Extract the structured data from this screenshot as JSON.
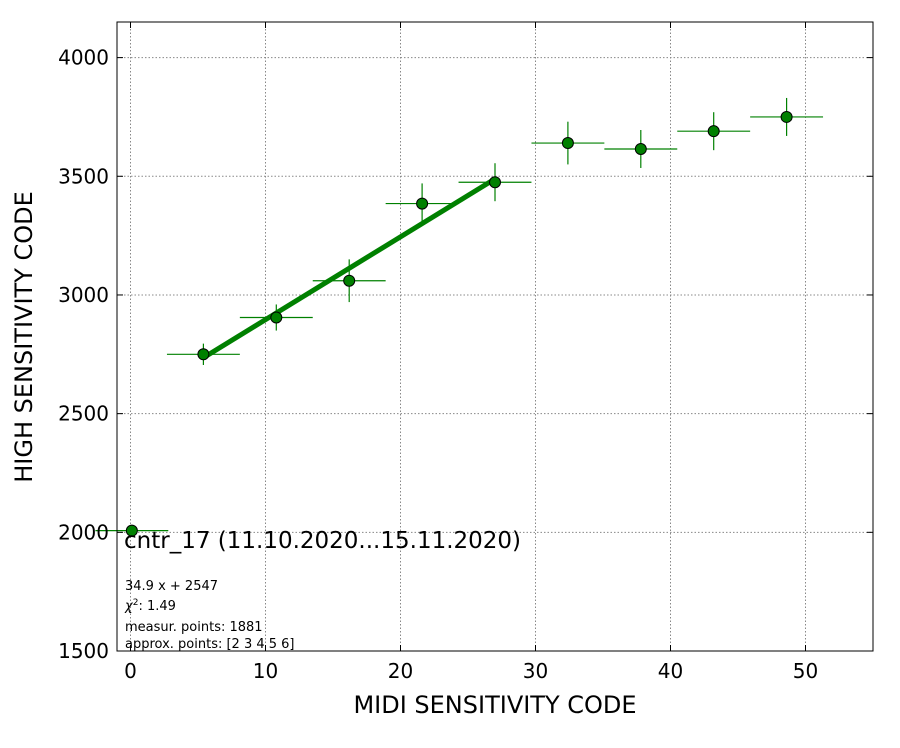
{
  "chart_data": {
    "type": "scatter",
    "title": "",
    "xlabel": "MIDI SENSITIVITY CODE",
    "ylabel": "HIGH SENSITIVITY CODE",
    "xlim": [
      -1,
      55
    ],
    "ylim": [
      1500,
      4150
    ],
    "x_ticks": [
      0,
      10,
      20,
      30,
      40,
      50
    ],
    "y_ticks": [
      1500,
      2000,
      2500,
      3000,
      3500,
      4000
    ],
    "grid": true,
    "colors": {
      "points": "#008000",
      "fit_line": "#008000"
    },
    "points": [
      {
        "x": 0.1,
        "y": 2007,
        "xerr": 2.7,
        "yerr": 0
      },
      {
        "x": 5.4,
        "y": 2750,
        "xerr": 2.7,
        "yerr": 45
      },
      {
        "x": 10.8,
        "y": 2905,
        "xerr": 2.7,
        "yerr": 55
      },
      {
        "x": 16.2,
        "y": 3060,
        "xerr": 2.7,
        "yerr": 90
      },
      {
        "x": 21.6,
        "y": 3385,
        "xerr": 2.7,
        "yerr": 85
      },
      {
        "x": 27.0,
        "y": 3475,
        "xerr": 2.7,
        "yerr": 80
      },
      {
        "x": 32.4,
        "y": 3640,
        "xerr": 2.7,
        "yerr": 90
      },
      {
        "x": 37.8,
        "y": 3615,
        "xerr": 2.7,
        "yerr": 80
      },
      {
        "x": 43.2,
        "y": 3690,
        "xerr": 2.7,
        "yerr": 80
      },
      {
        "x": 48.6,
        "y": 3750,
        "xerr": 2.7,
        "yerr": 80
      }
    ],
    "fit": {
      "slope": 34.9,
      "intercept": 2547,
      "x_range": [
        5.4,
        27.0
      ]
    },
    "annotations": {
      "main": "cntr_17 (11.10.2020...15.11.2020)",
      "fit_eq": "34.9 x + 2547",
      "chi2": "1.49",
      "measur": "measur. points: 1881",
      "approx": "approx. points: [2 3 4 5 6]"
    }
  }
}
